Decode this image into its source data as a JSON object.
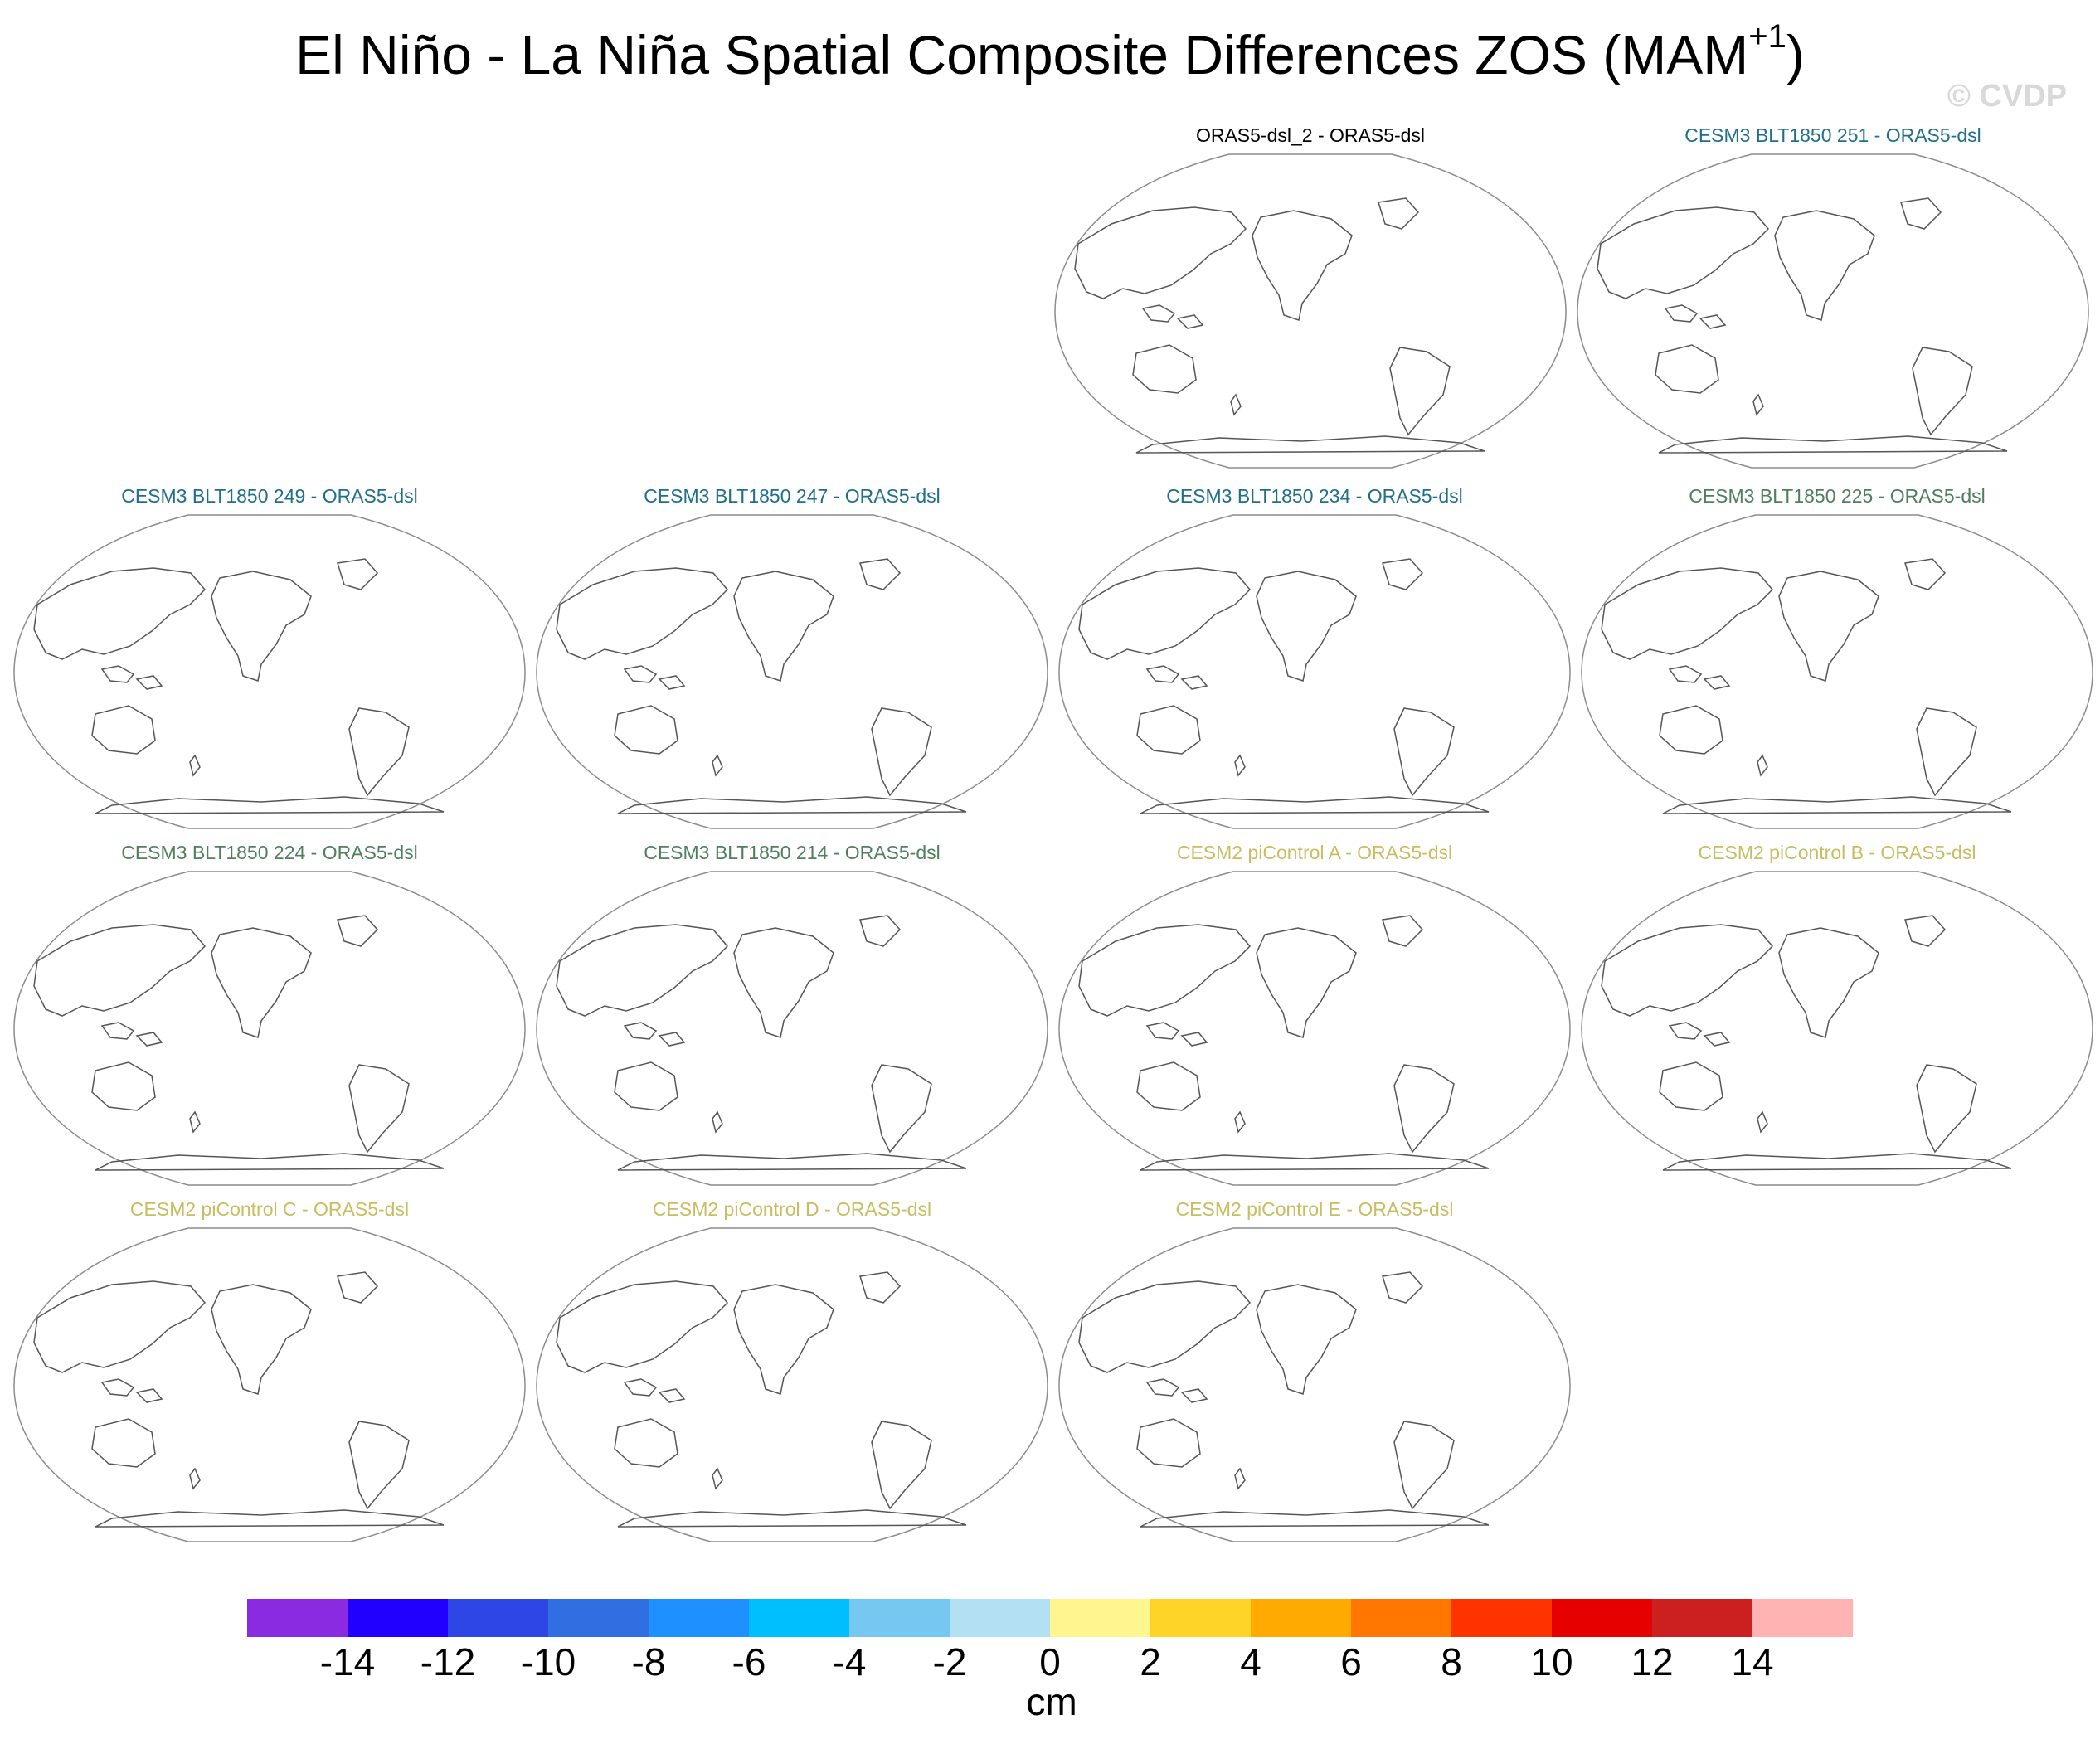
{
  "title": {
    "main": "El Niño - La Niña Spatial Composite Differences ZOS (MAM",
    "superscript": "+1",
    "close": ")"
  },
  "watermark": "© CVDP",
  "chart_data": {
    "type": "heatmap",
    "title": "El Niño - La Niña Spatial Composite Differences ZOS (MAM+1)",
    "variable": "ZOS",
    "units": "cm",
    "panels": [
      {
        "title": "ORAS5-dsl_2 - ORAS5-dsl",
        "color": "#000000"
      },
      {
        "title": "CESM3 BLT1850 251 - ORAS5-dsl",
        "color": "#1f6e8c"
      },
      {
        "title": "CESM3 BLT1850 249 - ORAS5-dsl",
        "color": "#1f6e8c"
      },
      {
        "title": "CESM3 BLT1850 247 - ORAS5-dsl",
        "color": "#1f6e8c"
      },
      {
        "title": "CESM3 BLT1850 234 - ORAS5-dsl",
        "color": "#1f6e8c"
      },
      {
        "title": "CESM3 BLT1850 225 - ORAS5-dsl",
        "color": "#4f7f5e"
      },
      {
        "title": "CESM3 BLT1850 224 - ORAS5-dsl",
        "color": "#4f7f5e"
      },
      {
        "title": "CESM3 BLT1850 214 - ORAS5-dsl",
        "color": "#4f7f5e"
      },
      {
        "title": "CESM2 piControl A - ORAS5-dsl",
        "color": "#c9bd62"
      },
      {
        "title": "CESM2 piControl B - ORAS5-dsl",
        "color": "#c9bd62"
      },
      {
        "title": "CESM2 piControl C - ORAS5-dsl",
        "color": "#c9bd62"
      },
      {
        "title": "CESM2 piControl D - ORAS5-dsl",
        "color": "#c9bd62"
      },
      {
        "title": "CESM2 piControl E - ORAS5-dsl",
        "color": "#c9bd62"
      }
    ],
    "colorbar": {
      "label": "cm",
      "ticks": [
        "-14",
        "-12",
        "-10",
        "-8",
        "-6",
        "-4",
        "-2",
        "0",
        "2",
        "4",
        "6",
        "8",
        "10",
        "12",
        "14"
      ],
      "colors": [
        "#8a2be2",
        "#2200ff",
        "#2e46e6",
        "#2f6fe2",
        "#1e90ff",
        "#00bfff",
        "#76c8f0",
        "#b4e0f3",
        "#fff68f",
        "#ffd428",
        "#ffaa00",
        "#ff7700",
        "#ff3300",
        "#e60000",
        "#cc2020",
        "#ffb3b3"
      ]
    }
  }
}
